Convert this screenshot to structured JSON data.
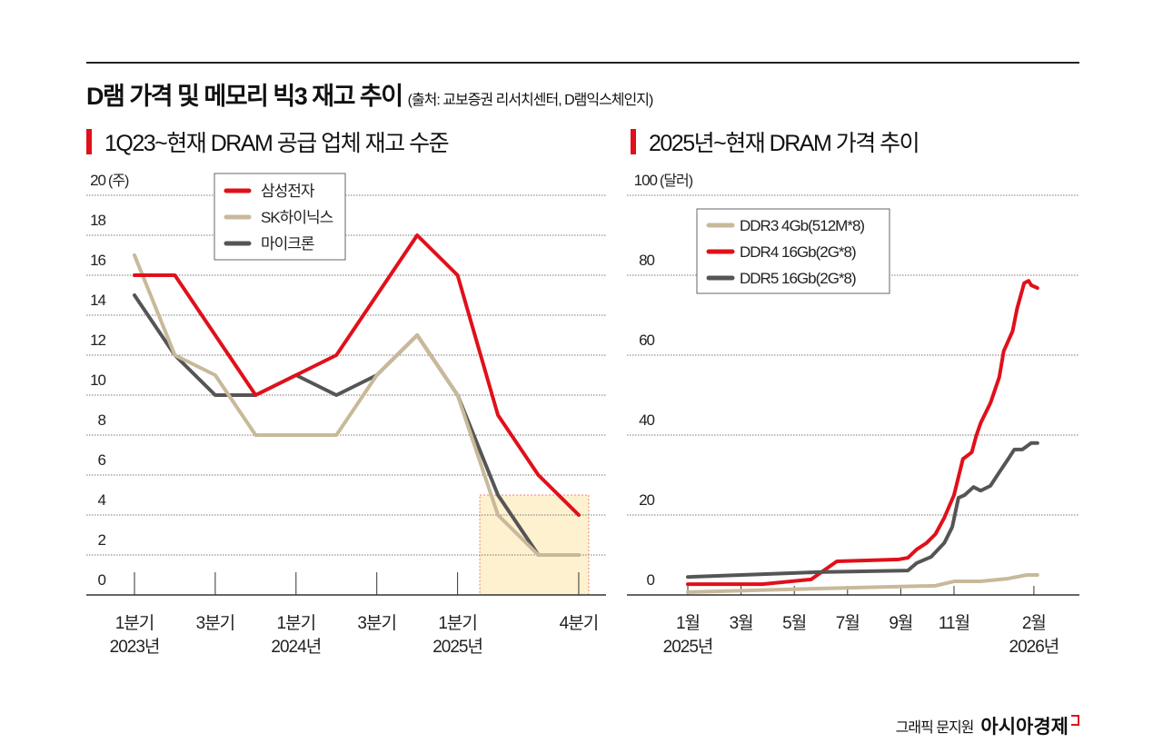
{
  "header": {
    "title": "D램 가격 및 메모리 빅3 재고 추이",
    "source": "(출처: 교보증권 리서치센터, D램익스체인지)"
  },
  "footer": {
    "credit": "그래픽 문지원",
    "brand": "아시아경제"
  },
  "colors": {
    "accent": "#e0101a",
    "samsung": "#e0101a",
    "sk": "#c8b99a",
    "micron": "#555555",
    "ddr3": "#c8b99a",
    "ddr4": "#e0101a",
    "ddr5": "#555555",
    "highlight": "#fdf1cf"
  },
  "chart_data": [
    {
      "type": "line",
      "title": "1Q23~현재 DRAM 공급 업체 재고 수준",
      "ylabel": "(주)",
      "ylim": [
        0,
        20
      ],
      "yticks": [
        0,
        2,
        4,
        6,
        8,
        10,
        12,
        14,
        16,
        18,
        20
      ],
      "grid": true,
      "legend": "top-center",
      "categories": [
        "1Q23",
        "2Q23",
        "3Q23",
        "4Q23",
        "1Q24",
        "2Q24",
        "3Q24",
        "4Q24",
        "1Q25",
        "2Q25",
        "3Q25",
        "4Q25"
      ],
      "xtick_labels": [
        {
          "category": "1Q23",
          "line1": "1분기",
          "line2": "2023년"
        },
        {
          "category": "3Q23",
          "line1": "3분기",
          "line2": ""
        },
        {
          "category": "1Q24",
          "line1": "1분기",
          "line2": "2024년"
        },
        {
          "category": "3Q24",
          "line1": "3분기",
          "line2": ""
        },
        {
          "category": "1Q25",
          "line1": "1분기",
          "line2": "2025년"
        },
        {
          "category": "4Q25",
          "line1": "4분기",
          "line2": ""
        }
      ],
      "highlight_range": [
        "2Q25",
        "4Q25"
      ],
      "series": [
        {
          "name": "삼성전자",
          "color": "#e0101a",
          "values": [
            16,
            16,
            13,
            10,
            11,
            12,
            15,
            18,
            16,
            9,
            6,
            4
          ]
        },
        {
          "name": "SK하이닉스",
          "color": "#c8b99a",
          "values": [
            17,
            12,
            11,
            8,
            8,
            8,
            11,
            13,
            10,
            4,
            2,
            2
          ]
        },
        {
          "name": "마이크론",
          "color": "#555555",
          "values": [
            15,
            12,
            10,
            10,
            11,
            10,
            11,
            13,
            10,
            5,
            2,
            2
          ]
        }
      ]
    },
    {
      "type": "line",
      "title": "2025년~현재 DRAM 가격 추이",
      "ylabel": "(달러)",
      "ylim": [
        0,
        100
      ],
      "yticks": [
        0,
        20,
        40,
        60,
        80,
        100
      ],
      "grid": true,
      "legend": "top-left",
      "xtick_labels": [
        {
          "date": "2025-01-01",
          "line1": "1월",
          "line2": "2025년"
        },
        {
          "date": "2025-03-01",
          "line1": "3월",
          "line2": ""
        },
        {
          "date": "2025-05-01",
          "line1": "5월",
          "line2": ""
        },
        {
          "date": "2025-07-01",
          "line1": "7월",
          "line2": ""
        },
        {
          "date": "2025-09-01",
          "line1": "9월",
          "line2": ""
        },
        {
          "date": "2025-11-01",
          "line1": "11월",
          "line2": ""
        },
        {
          "date": "2026-02-01",
          "line1": "2월",
          "line2": "2026년"
        }
      ],
      "series": [
        {
          "name": "DDR3 4Gb(512M*8)",
          "color": "#c8b99a",
          "points": [
            [
              "2025-01-01",
              0.7
            ],
            [
              "2025-05-27",
              1.6
            ],
            [
              "2025-10-10",
              2.3
            ],
            [
              "2025-11-01",
              3.4
            ],
            [
              "2025-12-01",
              3.4
            ],
            [
              "2026-01-02",
              4.1
            ],
            [
              "2026-01-23",
              5.0
            ],
            [
              "2026-02-05",
              5.0
            ]
          ]
        },
        {
          "name": "DDR4 16Gb(2G*8)",
          "color": "#e0101a",
          "points": [
            [
              "2025-01-01",
              2.7
            ],
            [
              "2025-03-25",
              2.7
            ],
            [
              "2025-05-20",
              3.9
            ],
            [
              "2025-06-19",
              8.4
            ],
            [
              "2025-08-29",
              8.9
            ],
            [
              "2025-09-09",
              9.3
            ],
            [
              "2025-09-19",
              11.4
            ],
            [
              "2025-09-30",
              13.0
            ],
            [
              "2025-10-10",
              15.2
            ],
            [
              "2025-10-20",
              19.3
            ],
            [
              "2025-11-01",
              25.0
            ],
            [
              "2025-11-11",
              34.0
            ],
            [
              "2025-11-21",
              35.7
            ],
            [
              "2025-11-26",
              39.8
            ],
            [
              "2025-12-01",
              43.0
            ],
            [
              "2025-12-12",
              48.0
            ],
            [
              "2025-12-22",
              54.5
            ],
            [
              "2025-12-27",
              61.0
            ],
            [
              "2026-01-07",
              66.0
            ],
            [
              "2026-01-12",
              71.6
            ],
            [
              "2026-01-20",
              78.0
            ],
            [
              "2026-01-25",
              78.6
            ],
            [
              "2026-01-28",
              77.5
            ],
            [
              "2026-02-05",
              76.8
            ]
          ]
        },
        {
          "name": "DDR5 16Gb(2G*8)",
          "color": "#555555",
          "points": [
            [
              "2025-01-01",
              4.5
            ],
            [
              "2025-05-27",
              5.7
            ],
            [
              "2025-09-09",
              6.1
            ],
            [
              "2025-09-19",
              8.0
            ],
            [
              "2025-10-05",
              9.5
            ],
            [
              "2025-10-20",
              13.0
            ],
            [
              "2025-10-29",
              17.0
            ],
            [
              "2025-11-06",
              24.3
            ],
            [
              "2025-11-13",
              25.0
            ],
            [
              "2025-11-23",
              27.0
            ],
            [
              "2025-12-01",
              26.1
            ],
            [
              "2025-12-12",
              27.3
            ],
            [
              "2025-12-22",
              30.7
            ],
            [
              "2026-01-02",
              34.0
            ],
            [
              "2026-01-09",
              36.4
            ],
            [
              "2026-01-18",
              36.4
            ],
            [
              "2026-01-28",
              38.0
            ],
            [
              "2026-02-05",
              38.0
            ]
          ]
        }
      ]
    }
  ]
}
